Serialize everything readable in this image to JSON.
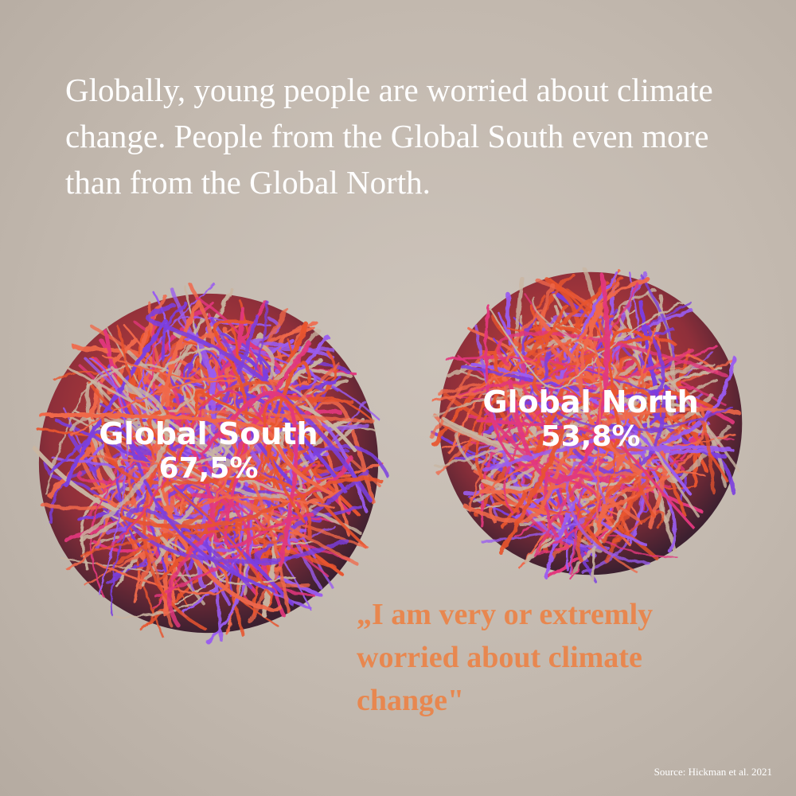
{
  "headline": "Globally, young people are worried about climate change. People from the Global South even more than from the Global North.",
  "chart_data": {
    "type": "bubble",
    "series": [
      {
        "name": "Global South",
        "value": 67.5,
        "value_label": "67,5%"
      },
      {
        "name": "Global North",
        "value": 53.8,
        "value_label": "53,8%"
      }
    ],
    "colors": [
      "#e8542e",
      "#7b3fe0",
      "#e2377d",
      "#c9b6a2",
      "#f0684a",
      "#9a5cf0"
    ]
  },
  "quote": "„I am very or extremly worried about climate change\"",
  "source": "Source: Hickman et al. 2021"
}
